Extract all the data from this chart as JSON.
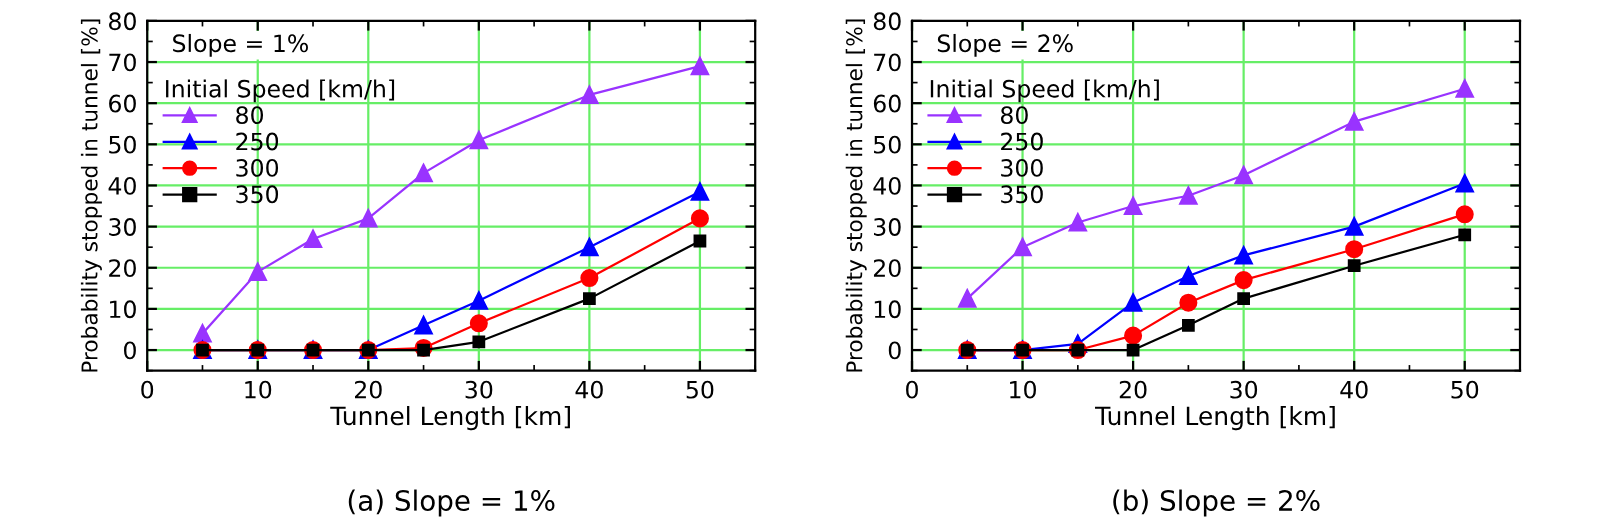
{
  "chart_data": [
    {
      "type": "line",
      "xlabel": "Tunnel Length [km]",
      "ylabel": "Probability stopped in tunnel [%]",
      "legend_title": "Initial Speed [km/h]",
      "annotations": [
        "Slope = 1%",
        "(a) Slope = 1%"
      ],
      "x": [
        5,
        10,
        15,
        20,
        25,
        30,
        40,
        50
      ],
      "series": [
        {
          "name": "80",
          "color": "#9933ff",
          "marker": "triangle",
          "values": [
            4,
            19,
            27,
            32,
            43,
            51,
            62,
            69
          ]
        },
        {
          "name": "250",
          "color": "#0000ff",
          "marker": "triangle",
          "values": [
            0,
            0,
            0,
            0,
            6,
            12,
            25,
            38.5
          ]
        },
        {
          "name": "300",
          "color": "#ff0000",
          "marker": "circle",
          "values": [
            0,
            0,
            0,
            0,
            0.5,
            6.5,
            17.5,
            32
          ]
        },
        {
          "name": "350",
          "color": "#000000",
          "marker": "square",
          "values": [
            0,
            0,
            0,
            0,
            0,
            2,
            12.5,
            26.5
          ]
        }
      ],
      "xlim": [
        0,
        55
      ],
      "xticks": [
        0,
        10,
        20,
        30,
        40,
        50
      ],
      "ylim": [
        -5,
        80
      ],
      "yticks": [
        0,
        10,
        20,
        30,
        40,
        50,
        60,
        70,
        80
      ],
      "grid": true,
      "legend": "top left",
      "line_style": "solid"
    },
    {
      "type": "line",
      "xlabel": "Tunnel Length [km]",
      "ylabel": "Probability stopped in tunnel [%]",
      "legend_title": "Initial Speed [km/h]",
      "annotations": [
        "Slope = 2%",
        "(b) Slope = 2%"
      ],
      "x": [
        5,
        10,
        15,
        20,
        25,
        30,
        40,
        50
      ],
      "series": [
        {
          "name": "80",
          "color": "#9933ff",
          "marker": "triangle",
          "values": [
            12.5,
            25,
            31,
            35,
            37.5,
            42.5,
            55.5,
            63.5
          ]
        },
        {
          "name": "250",
          "color": "#0000ff",
          "marker": "triangle",
          "values": [
            0,
            0,
            1.5,
            11.5,
            18,
            23,
            30,
            40.5
          ]
        },
        {
          "name": "300",
          "color": "#ff0000",
          "marker": "circle",
          "values": [
            0,
            0,
            0,
            3.5,
            11.5,
            17,
            24.5,
            33
          ]
        },
        {
          "name": "350",
          "color": "#000000",
          "marker": "square",
          "values": [
            0,
            0,
            0,
            0,
            6,
            12.5,
            20.5,
            28
          ]
        }
      ],
      "xlim": [
        0,
        55
      ],
      "xticks": [
        0,
        10,
        20,
        30,
        40,
        50
      ],
      "ylim": [
        -5,
        80
      ],
      "yticks": [
        0,
        10,
        20,
        30,
        40,
        50,
        60,
        70,
        80
      ],
      "grid": true,
      "legend": "top left",
      "line_style": "solid"
    }
  ]
}
